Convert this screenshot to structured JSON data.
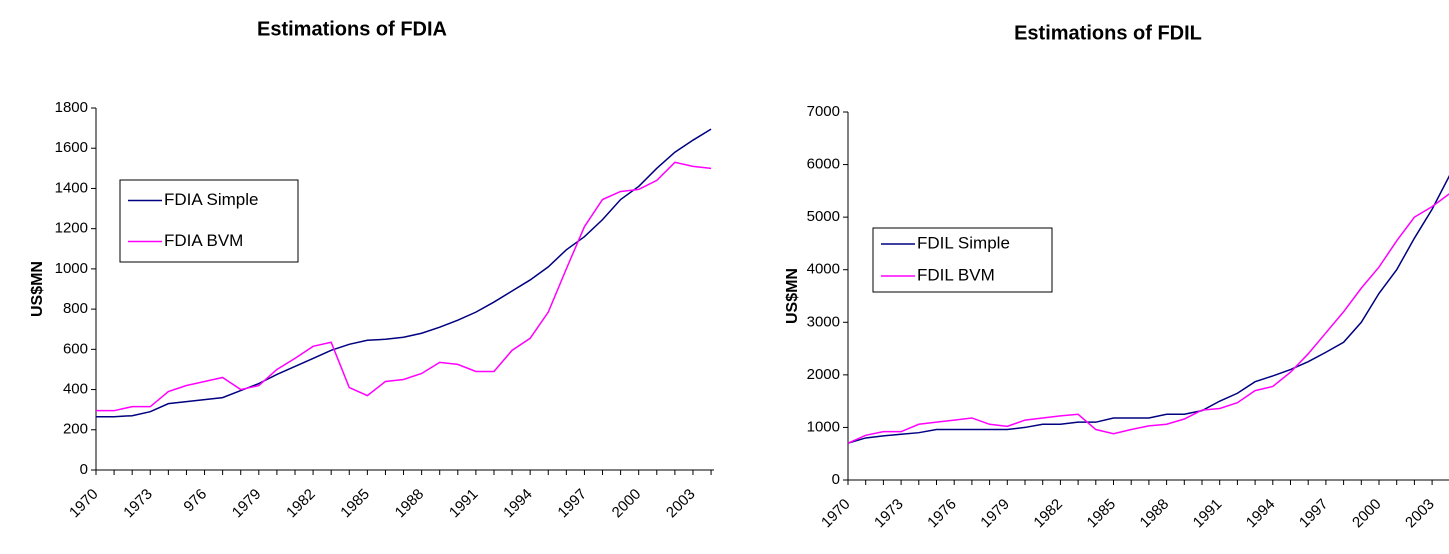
{
  "chart_data": [
    {
      "type": "line",
      "title": "Estimations of FDIA",
      "y_label": "US$MN",
      "categories": [
        "1970",
        null,
        null,
        "1973",
        null,
        null,
        "976",
        null,
        null,
        "1979",
        null,
        null,
        "1982",
        null,
        null,
        "1985",
        null,
        null,
        "1988",
        null,
        null,
        "1991",
        null,
        null,
        "1994",
        null,
        null,
        "1997",
        null,
        null,
        "2000",
        null,
        null,
        "2003",
        null
      ],
      "series": [
        {
          "name": "FDIA Simple",
          "color": "#000080",
          "values": [
            265,
            265,
            270,
            290,
            330,
            340,
            350,
            360,
            395,
            430,
            475,
            515,
            555,
            595,
            625,
            645,
            650,
            660,
            680,
            710,
            745,
            785,
            835,
            890,
            945,
            1010,
            1095,
            1160,
            1245,
            1345,
            1410,
            1500,
            1580,
            1640,
            1695
          ]
        },
        {
          "name": "FDIA BVM",
          "color": "#ff00ff",
          "values": [
            295,
            295,
            315,
            315,
            390,
            420,
            440,
            460,
            400,
            420,
            500,
            555,
            615,
            635,
            410,
            370,
            440,
            450,
            480,
            535,
            525,
            490,
            490,
            595,
            655,
            785,
            1000,
            1210,
            1345,
            1385,
            1395,
            1440,
            1530,
            1510,
            1500
          ]
        }
      ],
      "ylim": [
        0,
        1800
      ],
      "yticks": [
        0,
        200,
        400,
        600,
        800,
        1000,
        1200,
        1400,
        1600,
        1800
      ],
      "legend": "left"
    },
    {
      "type": "line",
      "title": "Estimations of FDIL",
      "y_label": "US$MN",
      "categories": [
        "1970",
        null,
        null,
        "1973",
        null,
        null,
        "1976",
        null,
        null,
        "1979",
        null,
        null,
        "1982",
        null,
        null,
        "1985",
        null,
        null,
        "1988",
        null,
        null,
        "1991",
        null,
        null,
        "1994",
        null,
        null,
        "1997",
        null,
        null,
        "2000",
        null,
        null,
        "2003",
        null
      ],
      "series": [
        {
          "name": "FDIL Simple",
          "color": "#000080",
          "values": [
            700,
            800,
            840,
            870,
            900,
            960,
            960,
            960,
            960,
            960,
            1000,
            1060,
            1060,
            1100,
            1100,
            1180,
            1180,
            1180,
            1250,
            1250,
            1320,
            1500,
            1650,
            1870,
            1980,
            2100,
            2250,
            2430,
            2620,
            3000,
            3550,
            4000,
            4600,
            5150,
            5800
          ]
        },
        {
          "name": "FDIL BVM",
          "color": "#ff00ff",
          "values": [
            700,
            850,
            920,
            920,
            1060,
            1100,
            1140,
            1180,
            1060,
            1020,
            1140,
            1180,
            1220,
            1250,
            960,
            880,
            960,
            1030,
            1060,
            1160,
            1330,
            1360,
            1470,
            1700,
            1780,
            2050,
            2400,
            2800,
            3200,
            3650,
            4050,
            4550,
            5000,
            5200,
            5450
          ]
        }
      ],
      "ylim": [
        0,
        7000
      ],
      "yticks": [
        0,
        1000,
        2000,
        3000,
        4000,
        5000,
        6000,
        7000
      ],
      "legend": "left"
    }
  ]
}
